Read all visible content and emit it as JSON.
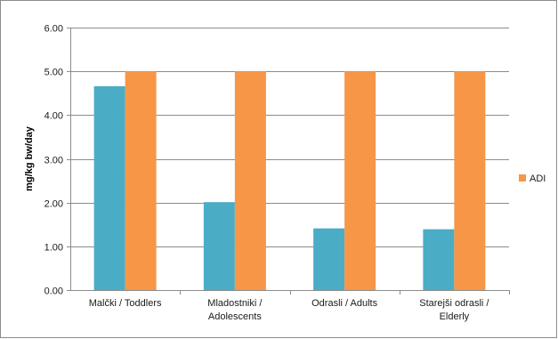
{
  "chart_data": {
    "type": "bar",
    "categories": [
      [
        "Malčki / Toddlers"
      ],
      [
        "Mladostniki /",
        "Adolescents"
      ],
      [
        "Odrasli / Adults"
      ],
      [
        "Starejši odrasli /",
        "Elderly"
      ]
    ],
    "series": [
      {
        "values": [
          4.66,
          2.01,
          1.41,
          1.39
        ],
        "color": "#4bacc6"
      },
      {
        "name": "ADI",
        "values": [
          5.0,
          5.0,
          5.0,
          5.0
        ],
        "color": "#f79646"
      }
    ],
    "ylabel": "mg/kg bw/day",
    "ylim": [
      0,
      6
    ],
    "yticks": [
      "0.00",
      "1.00",
      "2.00",
      "3.00",
      "4.00",
      "5.00",
      "6.00"
    ],
    "grid": true,
    "legend_position": "right"
  }
}
